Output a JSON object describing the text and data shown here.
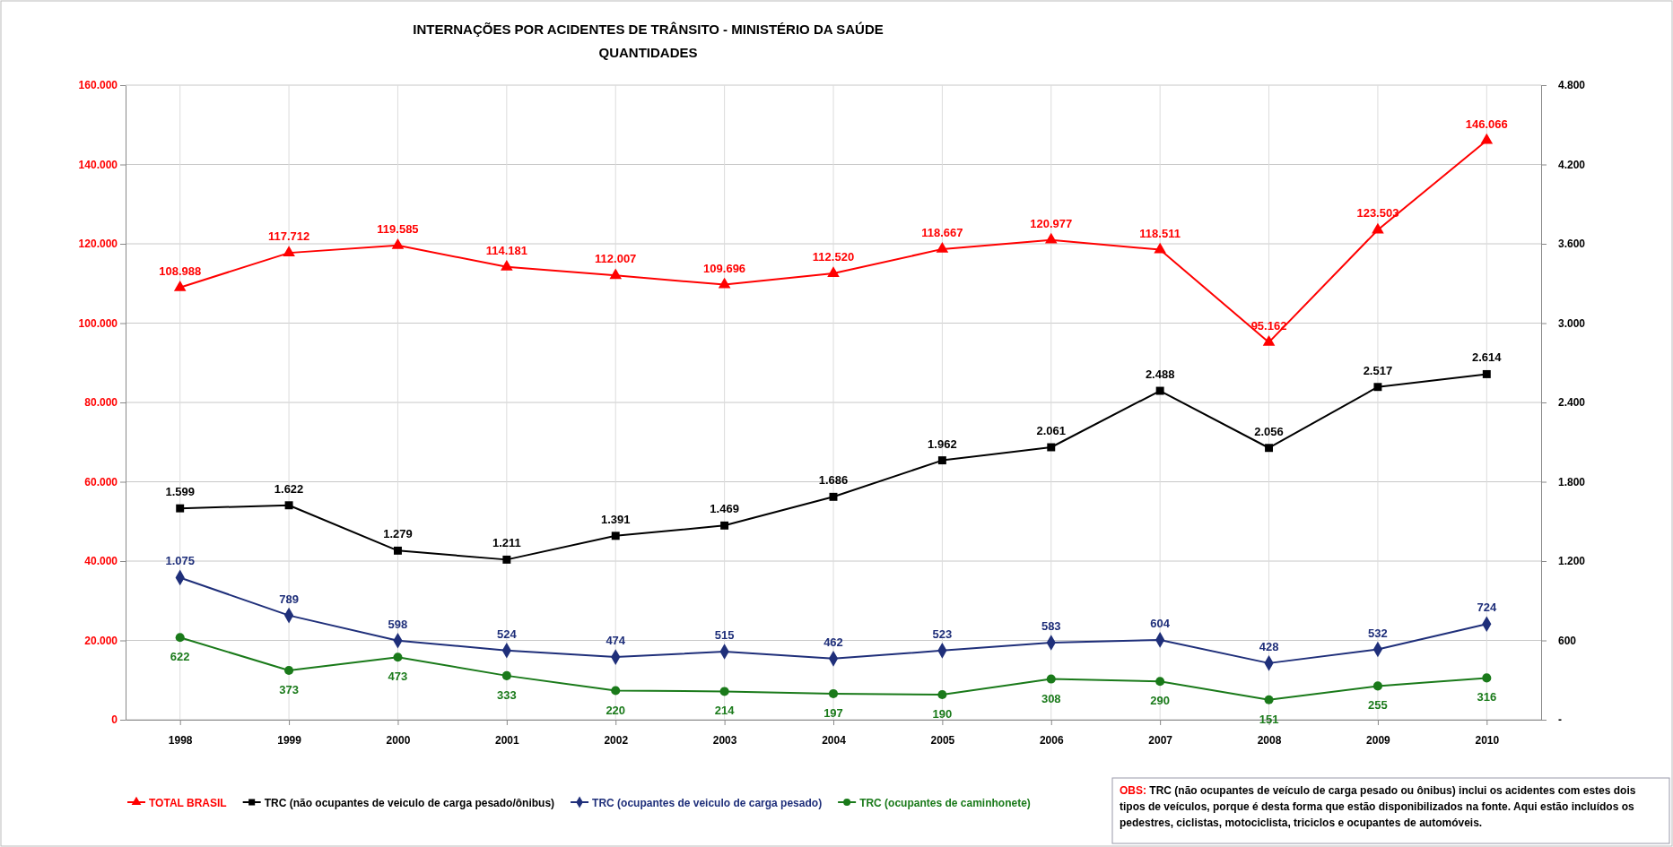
{
  "chart_data": {
    "type": "line",
    "title": "INTERNAÇÕES POR ACIDENTES DE TRÂNSITO - MINISTÉRIO DA SAÚDE",
    "subtitle": "QUANTIDADES",
    "categories": [
      "1998",
      "1999",
      "2000",
      "2001",
      "2002",
      "2003",
      "2004",
      "2005",
      "2006",
      "2007",
      "2008",
      "2009",
      "2010"
    ],
    "ylim": [
      0,
      160000
    ],
    "yticks": [
      0,
      {
        "value": 20000,
        "label": "20.000"
      },
      {
        "value": 40000,
        "label": "40.000"
      },
      {
        "value": 60000,
        "label": "60.000"
      },
      {
        "value": 80000,
        "label": "80.000"
      },
      {
        "value": 100000,
        "label": "100.000"
      },
      {
        "value": 120000,
        "label": "120.000"
      },
      {
        "value": 140000,
        "label": "140.000"
      },
      {
        "value": 160000,
        "label": "160.000"
      }
    ],
    "y2lim": [
      0,
      4800
    ],
    "y2ticks": [
      {
        "value": 0,
        "label": "-"
      },
      600,
      {
        "value": 1200,
        "label": "1.200"
      },
      {
        "value": 1800,
        "label": "1.800"
      },
      {
        "value": 2400,
        "label": "2.400"
      },
      {
        "value": 3000,
        "label": "3.000"
      },
      {
        "value": 3600,
        "label": "3.600"
      },
      {
        "value": 4200,
        "label": "4.200"
      },
      {
        "value": 4800,
        "label": "4.800"
      }
    ],
    "grid": true,
    "legend": "bottom left",
    "line_style": "solid",
    "series": [
      {
        "name": "TOTAL BRASIL",
        "color": "#ff0000",
        "marker": "triangle",
        "values": [
          108988,
          117712,
          119585,
          114181,
          112007,
          109696,
          112520,
          118667,
          120977,
          118511,
          95162,
          123503,
          146066
        ],
        "value_labels": [
          "108.988",
          "117.712",
          "119.585",
          "114.181",
          "112.007",
          "109.696",
          "112.520",
          "118.667",
          "120.977",
          "118.511",
          "95.162",
          "123.503",
          "146.066"
        ]
      },
      {
        "name": "TRC (não ocupantes de veiculo de carga pesado/ônibus)",
        "color": "#000000",
        "marker": "square",
        "axis": "y2",
        "values": [
          1599,
          1622,
          1279,
          1211,
          1391,
          1469,
          1686,
          1962,
          2061,
          2488,
          2056,
          2517,
          2614
        ],
        "value_labels": [
          "1.599",
          "1.622",
          "1.279",
          "1.211",
          "1.391",
          "1.469",
          "1.686",
          "1.962",
          "2.061",
          "2.488",
          "2.056",
          "2.517",
          "2.614"
        ]
      },
      {
        "name": "TRC (ocupantes de veiculo de carga pesado)",
        "color": "#1f2f7a",
        "marker": "diamond",
        "axis": "y2",
        "values": [
          1075,
          789,
          598,
          524,
          474,
          515,
          462,
          523,
          583,
          604,
          428,
          532,
          724
        ],
        "value_labels": [
          "1.075",
          "789",
          "598",
          "524",
          "474",
          "515",
          "462",
          "523",
          "583",
          "604",
          "428",
          "532",
          "724"
        ]
      },
      {
        "name": "TRC (ocupantes de caminhonete)",
        "color": "#1a7a1a",
        "marker": "circle",
        "axis": "y2",
        "values": [
          622,
          373,
          473,
          333,
          220,
          214,
          197,
          190,
          308,
          290,
          151,
          255,
          316
        ],
        "value_labels": [
          "622",
          "373",
          "473",
          "333",
          "220",
          "214",
          "197",
          "190",
          "308",
          "290",
          "151",
          "255",
          "316"
        ]
      }
    ],
    "annotations": [
      "OBS: TRC (não ocupantes de veículo de carga pesado ou ônibus) inclui  os acidentes com estes dois tipos de veículos, porque é desta forma que estão disponibilizados na fonte. Aqui estão incluídos os pedestres, ciclistas, motociclista, triciclos e ocupantes de automóveis."
    ]
  }
}
